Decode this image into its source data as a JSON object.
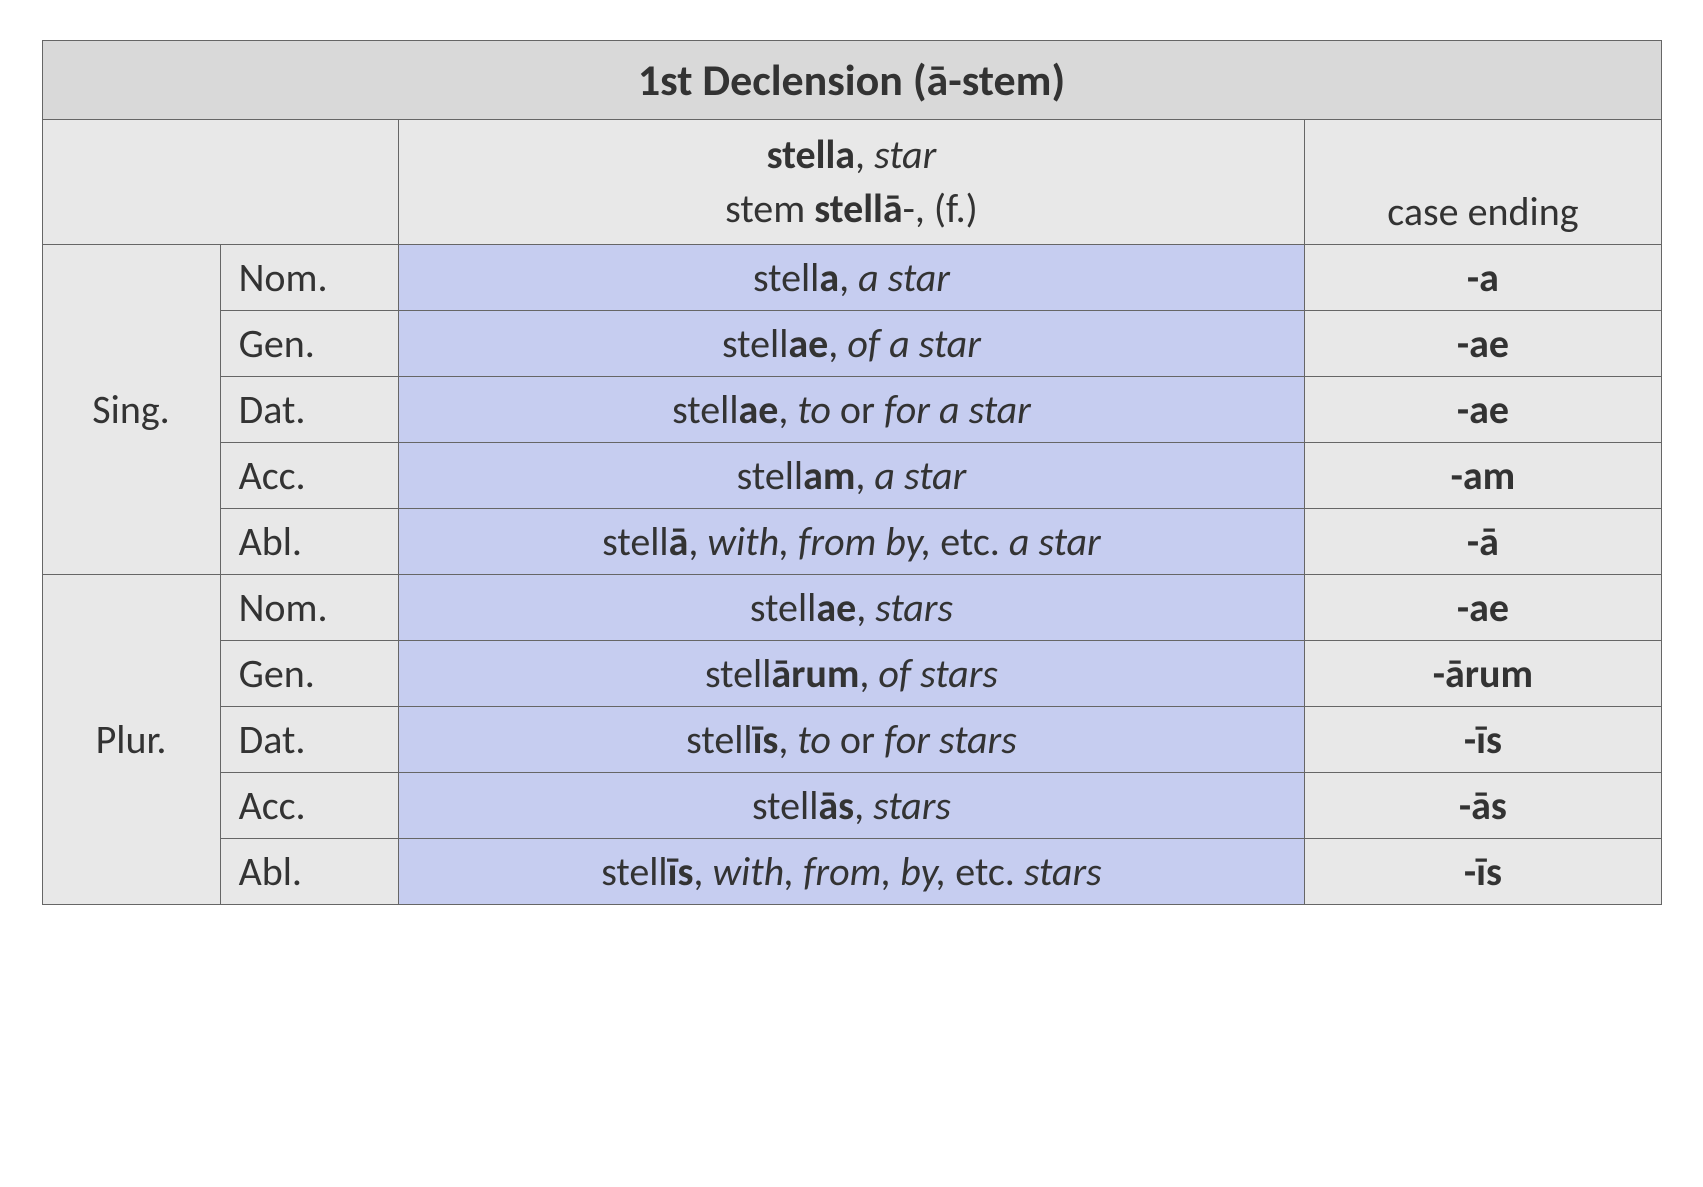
{
  "type": "table",
  "title": "1st Declension (ā-stem)",
  "exampleHeader": {
    "word": "stella",
    "translation": "star",
    "stemPrefix": "stem ",
    "stem": "stellā",
    "stemSuffix": "-, (f.)"
  },
  "endingHeader": "case ending",
  "groups": [
    {
      "label": "Sing.",
      "rows": [
        {
          "case": "Nom.",
          "root": "stell",
          "bold": "a",
          "transHTML": "<span class=\"i\">a star</span>",
          "ending": "-a"
        },
        {
          "case": "Gen.",
          "root": "stell",
          "bold": "ae",
          "transHTML": "<span class=\"i\">of a star</span>",
          "ending": "-ae"
        },
        {
          "case": "Dat.",
          "root": "stell",
          "bold": "ae",
          "transHTML": "<span class=\"i\">to</span> or <span class=\"i\">for a star</span>",
          "ending": "-ae"
        },
        {
          "case": "Acc.",
          "root": "stell",
          "bold": "am",
          "transHTML": "<span class=\"i\">a star</span>",
          "ending": "-am"
        },
        {
          "case": "Abl.",
          "root": "stell",
          "bold": "ā",
          "transHTML": "<span class=\"i\">with, from by,</span> etc. <span class=\"i\">a star</span>",
          "ending": "-ā"
        }
      ]
    },
    {
      "label": "Plur.",
      "rows": [
        {
          "case": "Nom.",
          "root": "stell",
          "bold": "ae",
          "transHTML": "<span class=\"i\">stars</span>",
          "ending": "-ae"
        },
        {
          "case": "Gen.",
          "root": "stell",
          "bold": "ārum",
          "transHTML": "<span class=\"i\">of stars</span>",
          "ending": "-ārum"
        },
        {
          "case": "Dat.",
          "root": "stell",
          "bold": "īs",
          "transHTML": "<span class=\"i\">to</span> or <span class=\"i\">for stars</span>",
          "ending": "-īs"
        },
        {
          "case": "Acc.",
          "root": "stell",
          "bold": "ās",
          "transHTML": "<span class=\"i\">stars</span>",
          "ending": "-ās"
        },
        {
          "case": "Abl.",
          "root": "stell",
          "bold": "īs",
          "transHTML": "<span class=\"i\">with, from, by,</span> etc. <span class=\"i\">stars</span>",
          "ending": "-īs"
        }
      ]
    }
  ],
  "colors": {
    "titleBg": "#d9d9d9",
    "headerBg": "#e8e8e8",
    "exampleBg": "#c6cdf0",
    "border": "#666666",
    "text": "#333333"
  },
  "fontSizes": {
    "title": 44,
    "body": 40
  }
}
